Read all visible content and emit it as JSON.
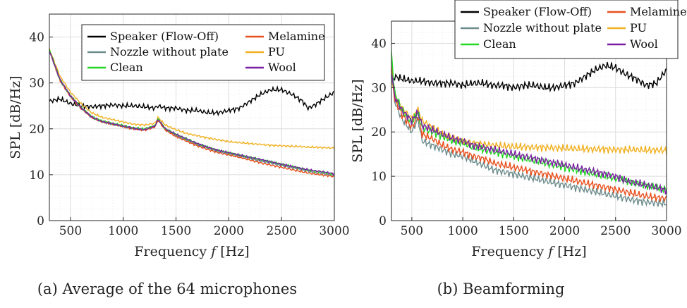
{
  "colors": {
    "Speaker (Flow-Off)": "#000000",
    "Nozzle without plate": "#6e8c8c",
    "Clean": "#22d822",
    "Melamine": "#e8501e",
    "PU": "#f0b020",
    "Wool": "#7a1fa2"
  },
  "chart_data": [
    {
      "type": "line",
      "caption": "(a) Average of the 64 microphones",
      "xlabel_parts": [
        "Frequency ",
        "f",
        " [Hz]"
      ],
      "ylabel": "SPL [dB/Hz]",
      "xlim": [
        300,
        3000
      ],
      "ylim": [
        0,
        45
      ],
      "xticks": [
        500,
        1000,
        1500,
        2000,
        2500,
        3000
      ],
      "yticks": [
        0,
        10,
        20,
        30,
        40
      ],
      "grid": true,
      "legend": "top-right, inside, 2 columns",
      "x": [
        300,
        400,
        500,
        600,
        700,
        800,
        900,
        1000,
        1100,
        1200,
        1300,
        1330,
        1400,
        1500,
        1600,
        1700,
        1800,
        1900,
        2000,
        2100,
        2200,
        2300,
        2400,
        2500,
        2600,
        2700,
        2750,
        2800,
        2900,
        3000
      ],
      "series": [
        {
          "name": "Speaker (Flow-Off)",
          "values": [
            26,
            26.5,
            25.5,
            25,
            24.8,
            25,
            25.2,
            25,
            25,
            24.8,
            24.5,
            25,
            24.5,
            24.5,
            24,
            24,
            23.5,
            23.5,
            24,
            24.5,
            26,
            27.5,
            28.5,
            28.5,
            27.5,
            26,
            24.5,
            25,
            26.5,
            28
          ]
        },
        {
          "name": "Nozzle without plate",
          "values": [
            37,
            30.5,
            27,
            24.5,
            22.5,
            21.5,
            21,
            20.5,
            20,
            19.8,
            20.5,
            22,
            19.8,
            18.5,
            17.5,
            16.5,
            15.8,
            15,
            14.5,
            14,
            13.5,
            13,
            12.5,
            12,
            11.5,
            11,
            10.8,
            10.5,
            10.2,
            9.8
          ]
        },
        {
          "name": "Clean",
          "values": [
            37.3,
            30.8,
            27.2,
            24.7,
            22.7,
            21.7,
            21.2,
            20.7,
            20.2,
            20,
            20.7,
            22.2,
            20,
            18.8,
            17.8,
            16.8,
            16,
            15.3,
            14.8,
            14.3,
            13.8,
            13.3,
            12.8,
            12.3,
            11.8,
            11.3,
            11,
            10.8,
            10.5,
            10
          ]
        },
        {
          "name": "Melamine",
          "values": [
            37.1,
            30.6,
            27,
            24.5,
            22.5,
            21.5,
            21,
            20.5,
            20,
            19.7,
            20.4,
            21.9,
            19.7,
            18.3,
            17.3,
            16.3,
            15.5,
            14.8,
            14.3,
            13.8,
            13.2,
            12.6,
            12.1,
            11.6,
            11.1,
            10.6,
            10.4,
            10.2,
            9.9,
            9.6
          ]
        },
        {
          "name": "PU",
          "values": [
            37.4,
            31.5,
            28,
            25.5,
            23.5,
            22.5,
            22,
            21.5,
            21,
            20.8,
            21.2,
            22.5,
            20.8,
            19.8,
            19,
            18.5,
            18,
            17.6,
            17.2,
            17,
            16.8,
            16.6,
            16.4,
            16.3,
            16.2,
            16.1,
            16,
            16,
            15.9,
            15.8
          ]
        },
        {
          "name": "Wool",
          "values": [
            37,
            30.8,
            27.2,
            24.6,
            22.6,
            21.6,
            21.1,
            20.6,
            20.1,
            19.8,
            20.6,
            22.1,
            20,
            18.8,
            17.8,
            16.8,
            16,
            15.3,
            14.8,
            14.3,
            13.8,
            13.3,
            12.8,
            12.3,
            11.8,
            11.3,
            11.1,
            10.9,
            10.6,
            10.2
          ]
        }
      ]
    },
    {
      "type": "line",
      "caption": "(b) Beamforming",
      "xlabel_parts": [
        "Frequency ",
        "f",
        " [Hz]"
      ],
      "ylabel": "SPL [dB/Hz]",
      "xlim": [
        300,
        3000
      ],
      "ylim": [
        0,
        45
      ],
      "xticks": [
        500,
        1000,
        1500,
        2000,
        2500,
        3000
      ],
      "yticks": [
        0,
        10,
        20,
        30,
        40
      ],
      "grid": true,
      "legend": "above plot, 2 columns",
      "x": [
        300,
        330,
        400,
        500,
        560,
        600,
        700,
        800,
        900,
        1000,
        1100,
        1200,
        1300,
        1400,
        1500,
        1600,
        1700,
        1800,
        1900,
        2000,
        2100,
        2200,
        2300,
        2400,
        2500,
        2600,
        2700,
        2800,
        2900,
        3000
      ],
      "series": [
        {
          "name": "Speaker (Flow-Off)",
          "values": [
            31,
            32.5,
            32,
            31.5,
            31.5,
            31.5,
            31,
            31,
            31,
            30.5,
            31,
            31,
            30.5,
            30.5,
            30,
            30.5,
            30.5,
            30,
            30,
            30.5,
            31,
            32.5,
            34,
            35,
            34.5,
            33,
            32,
            30.5,
            31,
            34
          ]
        },
        {
          "name": "Nozzle without plate",
          "values": [
            34,
            27,
            23,
            20,
            23,
            18,
            17,
            16,
            15,
            14.5,
            13.5,
            12.5,
            11.5,
            11,
            10.5,
            10,
            9.5,
            9,
            8.5,
            8,
            7.5,
            7,
            6.5,
            6,
            5.5,
            5,
            4.5,
            4.2,
            4,
            3.8
          ]
        },
        {
          "name": "Clean",
          "values": [
            38,
            29,
            25,
            22,
            24.5,
            21,
            20,
            19,
            18,
            17.5,
            16.5,
            16,
            15.5,
            15,
            14.5,
            14,
            13.5,
            13,
            12.5,
            12,
            11.5,
            11,
            10.5,
            10,
            9.5,
            9,
            8.5,
            8,
            7.5,
            7
          ]
        },
        {
          "name": "Melamine",
          "values": [
            35,
            27.5,
            24,
            21,
            23.5,
            19.5,
            18.5,
            17,
            16,
            15.5,
            14.5,
            14,
            13,
            12.5,
            12,
            11.5,
            11,
            10.5,
            10,
            9.5,
            9,
            8.5,
            8,
            7.5,
            7,
            6.5,
            6,
            5.5,
            5.2,
            5
          ]
        },
        {
          "name": "PU",
          "values": [
            33,
            28,
            25.5,
            23,
            25,
            22.5,
            21,
            19.5,
            18.5,
            18,
            17.5,
            17.2,
            17,
            16.8,
            16.7,
            16.6,
            16.5,
            16.5,
            16.4,
            16.3,
            16.2,
            16.2,
            16.1,
            16.1,
            16,
            16,
            16,
            15.9,
            15.9,
            15.8
          ]
        },
        {
          "name": "Wool",
          "values": [
            34,
            28,
            25,
            22.5,
            24.5,
            21.5,
            20.5,
            19.5,
            18.5,
            18,
            17,
            16.5,
            16,
            15.5,
            15,
            14.5,
            14,
            13.5,
            13,
            12.5,
            12,
            11.5,
            11,
            10.5,
            10,
            9,
            8.5,
            8,
            7.5,
            6.8
          ]
        }
      ]
    }
  ]
}
